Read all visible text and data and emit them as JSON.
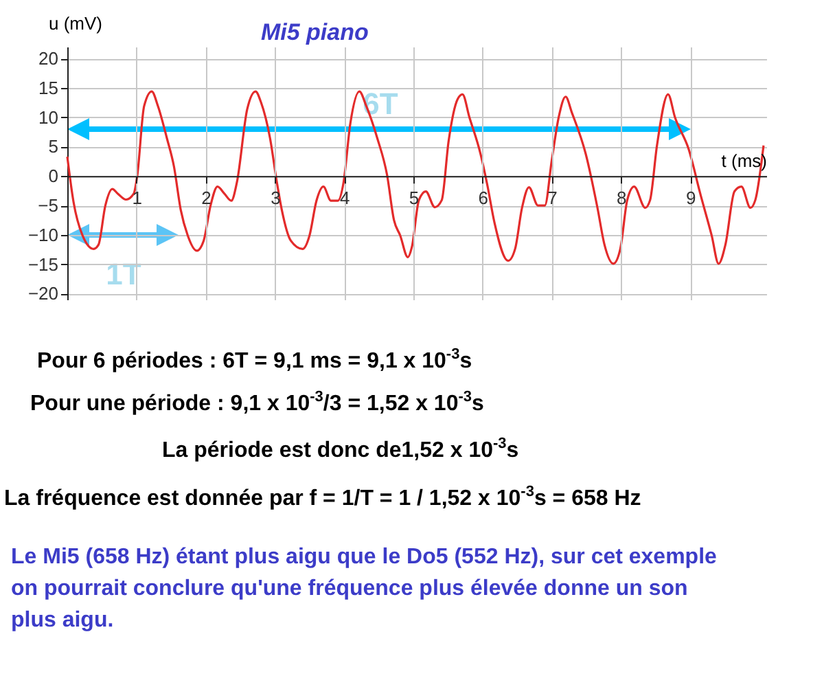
{
  "chart_data": {
    "type": "line",
    "title": "Mi5 piano",
    "xlabel": "t (ms)",
    "ylabel": "u (mV)",
    "xlim": [
      0,
      10.1
    ],
    "ylim": [
      -21,
      22
    ],
    "xticks": [
      1,
      2,
      3,
      4,
      5,
      6,
      7,
      8,
      9
    ],
    "yticks": [
      -20,
      -15,
      -10,
      -5,
      0,
      5,
      10,
      15,
      20
    ],
    "grid": true,
    "series": [
      {
        "color": "#e32b2b",
        "x": [
          0,
          0.09,
          0.22,
          0.38,
          0.45,
          0.55,
          0.65,
          0.73,
          0.85,
          0.96,
          1.01,
          1.11,
          1.22,
          1.31,
          1.44,
          1.54,
          1.64,
          1.74,
          1.87,
          1.97,
          2.07,
          2.17,
          2.27,
          2.37,
          2.45,
          2.6,
          2.72,
          2.8,
          2.93,
          3.03,
          3.1,
          3.23,
          3.4,
          3.5,
          3.6,
          3.7,
          3.81,
          3.91,
          3.99,
          4.09,
          4.22,
          4.32,
          4.48,
          4.62,
          4.72,
          4.81,
          4.92,
          4.98,
          5.08,
          5.18,
          5.31,
          5.41,
          5.51,
          5.64,
          5.71,
          5.81,
          5.97,
          6.07,
          6.17,
          6.37,
          6.47,
          6.57,
          6.67,
          6.8,
          6.9,
          7.0,
          7.1,
          7.2,
          7.29,
          7.49,
          7.66,
          7.76,
          7.89,
          7.99,
          8.09,
          8.19,
          8.35,
          8.42,
          8.52,
          8.68,
          8.78,
          8.98,
          9.15,
          9.31,
          9.41,
          9.51,
          9.64,
          9.74,
          9.87,
          9.94,
          10.06
        ],
        "values": [
          3.3,
          -4.4,
          -10.1,
          -12.4,
          -11.7,
          -5,
          -2.2,
          -3,
          -4,
          -3,
          0,
          11.9,
          14.4,
          11.9,
          6.4,
          1.7,
          -5.8,
          -10.1,
          -12.7,
          -11,
          -5,
          -1.8,
          -3,
          -4.2,
          -1.1,
          11.4,
          14.4,
          12.5,
          6.4,
          -1.2,
          -5.8,
          -11,
          -12.4,
          -10.1,
          -4.2,
          -1.8,
          -4.2,
          -4.2,
          -1.2,
          9,
          14.4,
          11.9,
          6.4,
          0.2,
          -7.5,
          -10.1,
          -13.8,
          -12,
          -4.1,
          -2.6,
          -5.3,
          -4.1,
          6,
          13.1,
          13.9,
          10,
          3.8,
          -1.6,
          -7.8,
          -14.4,
          -12.4,
          -5.4,
          -1.9,
          -5,
          -5,
          2.7,
          10,
          13.5,
          10.8,
          3.8,
          -5.4,
          -11.6,
          -14.9,
          -12.4,
          -4.1,
          -1.8,
          -5.4,
          -4.1,
          5.2,
          13.9,
          10,
          4.5,
          -3.2,
          -10.1,
          -14.9,
          -11.6,
          -2.6,
          -1.8,
          -5.4,
          -4.1,
          5.2
        ]
      }
    ],
    "annotations": [
      "6T",
      "1T",
      "Pour 6 périodes : 6T = 9,1 ms = 9,1 x 10$^{-3}$s",
      "Pour une période :  9,1 x 10$^{-3}$/3 = 1,52 x 10$^{-3}$s",
      "La période est donc de1,52 x 10$^{-3}$s",
      "La fréquence est donnée par f = 1/T = 1 / 1,52 x 10$^{-3}$s  = 658 Hz",
      "Le Mi5 (658 Hz) étant plus aigu que le Do5 (552 Hz), sur cet exemple on pourrait conclure qu'une fréquence plus élevée donne un son plus aigu."
    ]
  }
}
